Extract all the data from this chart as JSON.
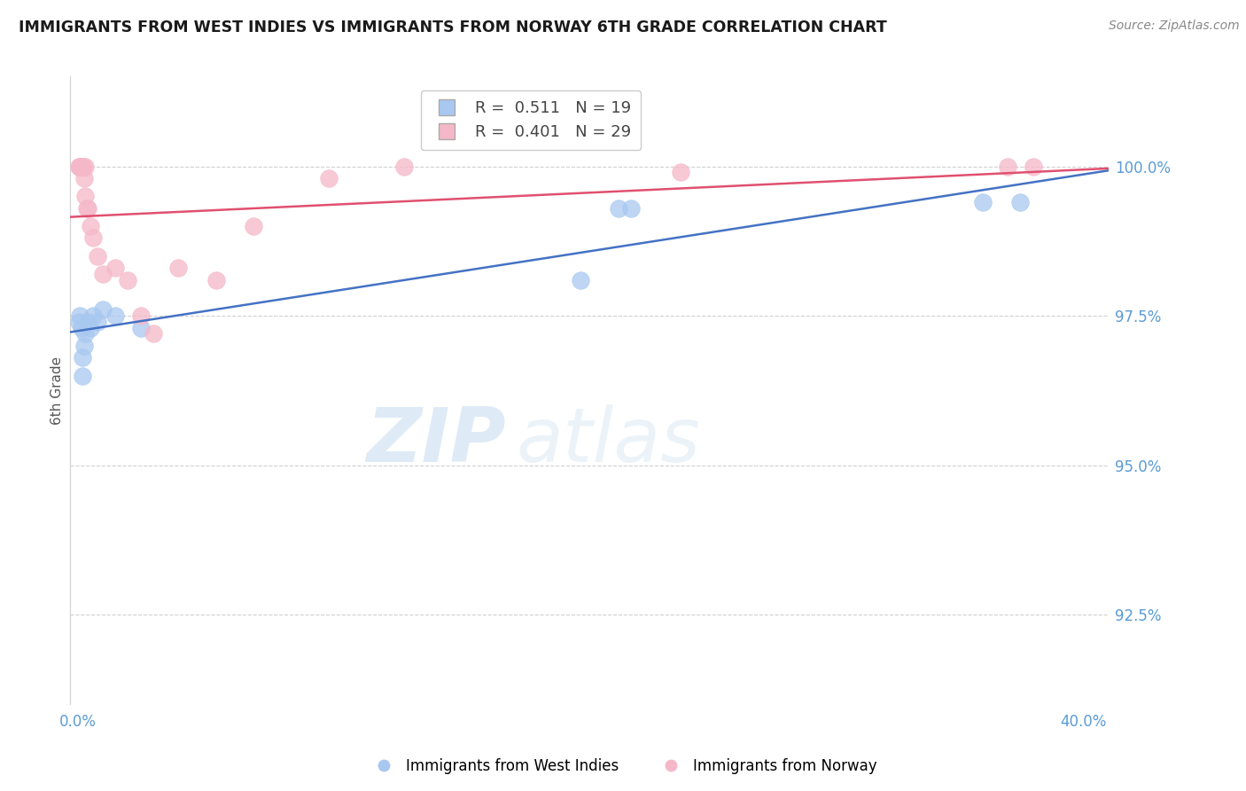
{
  "title": "IMMIGRANTS FROM WEST INDIES VS IMMIGRANTS FROM NORWAY 6TH GRADE CORRELATION CHART",
  "source": "Source: ZipAtlas.com",
  "ylabel": "6th Grade",
  "y_axis_values": [
    100.0,
    97.5,
    95.0,
    92.5
  ],
  "y_min": 91.0,
  "y_max": 101.5,
  "x_min": -0.3,
  "x_max": 41.0,
  "legend_r1": "R =  0.511   N = 19",
  "legend_r2": "R =  0.401   N = 29",
  "legend_label1": "Immigrants from West Indies",
  "legend_label2": "Immigrants from Norway",
  "blue_color": "#a8c8f0",
  "pink_color": "#f5b8c8",
  "blue_line_color": "#4472c4",
  "pink_line_color": "#e05070",
  "axis_color": "#5b9bd5",
  "watermark_zip": "ZIP",
  "watermark_atlas": "atlas",
  "wi_x": [
    0.05,
    0.1,
    0.15,
    0.18,
    0.2,
    0.25,
    0.3,
    0.4,
    0.5,
    0.6,
    0.8,
    1.0,
    1.5,
    2.5,
    20.0,
    21.5,
    22.0,
    36.0,
    37.5
  ],
  "wi_y": [
    97.4,
    97.5,
    97.3,
    96.8,
    96.5,
    97.0,
    97.2,
    97.4,
    97.3,
    97.5,
    97.4,
    97.6,
    97.5,
    97.3,
    98.1,
    99.3,
    99.3,
    99.4,
    99.4
  ],
  "no_x": [
    0.05,
    0.08,
    0.1,
    0.12,
    0.15,
    0.18,
    0.2,
    0.22,
    0.25,
    0.28,
    0.3,
    0.35,
    0.4,
    0.5,
    0.6,
    0.8,
    1.0,
    1.5,
    2.0,
    2.5,
    3.0,
    4.0,
    5.5,
    7.0,
    10.0,
    13.0,
    24.0,
    37.0,
    38.0
  ],
  "no_y": [
    100.0,
    100.0,
    100.0,
    100.0,
    100.0,
    100.0,
    100.0,
    100.0,
    99.8,
    100.0,
    99.5,
    99.3,
    99.3,
    99.0,
    98.8,
    98.5,
    98.2,
    98.3,
    98.1,
    97.5,
    97.2,
    98.3,
    98.1,
    99.0,
    99.8,
    100.0,
    99.9,
    100.0,
    100.0
  ]
}
